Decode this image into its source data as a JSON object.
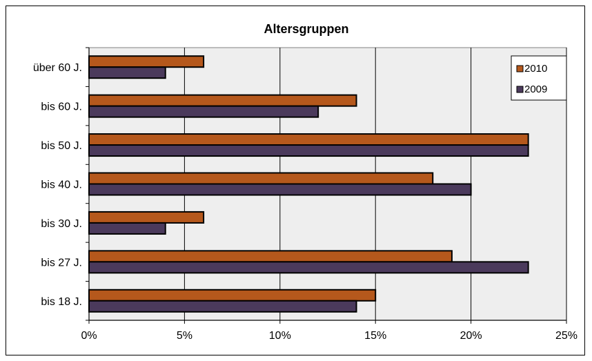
{
  "chart_data": {
    "type": "bar",
    "orientation": "horizontal",
    "title": "Altersgruppen",
    "categories": [
      "über 60 J.",
      "bis 60 J.",
      "bis 50 J.",
      "bis 40 J.",
      "bis 30 J.",
      "bis 27 J.",
      "bis 18 J."
    ],
    "series": [
      {
        "name": "2010",
        "values": [
          6,
          14,
          23,
          18,
          6,
          19,
          15
        ],
        "color": "#B5581C"
      },
      {
        "name": "2009",
        "values": [
          4,
          12,
          23,
          20,
          4,
          23,
          14
        ],
        "color": "#4B3A5C"
      }
    ],
    "x_ticks": [
      "0%",
      "5%",
      "10%",
      "15%",
      "20%",
      "25%"
    ],
    "xlim": [
      0,
      25
    ],
    "xlabel": "",
    "ylabel": "",
    "grid": true,
    "legend_position": "top-right",
    "plot_background": "#EEEEEE"
  }
}
